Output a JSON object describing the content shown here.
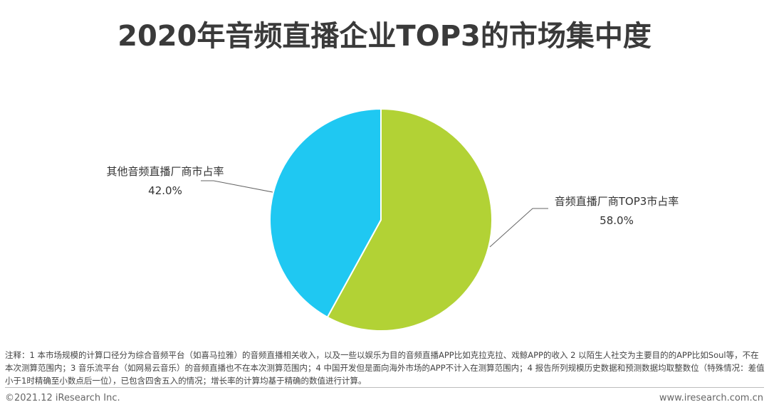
{
  "title": "2020年音频直播企业TOP3的市场集中度",
  "chart_data": {
    "type": "pie",
    "start_angle_deg": 0,
    "direction": "clockwise",
    "slices": [
      {
        "label": "音频直播厂商TOP3市占率",
        "value": 58.0,
        "value_label": "58.0%",
        "color": "#b2d235"
      },
      {
        "label": "其他音频直播厂商市占率",
        "value": 42.0,
        "value_label": "42.0%",
        "color": "#1fc8f2"
      }
    ],
    "leader_color": "#666666"
  },
  "note": "注释：1 本市场规模的计算口径分为综合音频平台（如喜马拉雅）的音频直播相关收入，以及一些以娱乐为目的音频直播APP比如克拉克拉、戏鲸APP的收入 2 以陌生人社交为主要目的的APP比如Soul等，不在本次测算范围内；3 音乐流平台（如网易云音乐）的音频直播也不在本次测算范围内；4 中国开发但是面向海外市场的APP不计入在测算范围内；4 报告所列规模历史数据和预测数据均取整数位（特殊情况：差值小于1时精确至小数点后一位），已包含四舍五入的情况；增长率的计算均基于精确的数值进行计算。",
  "footer": {
    "copyright": "©2021.12 iResearch Inc.",
    "website": "www.iresearch.com.cn"
  }
}
